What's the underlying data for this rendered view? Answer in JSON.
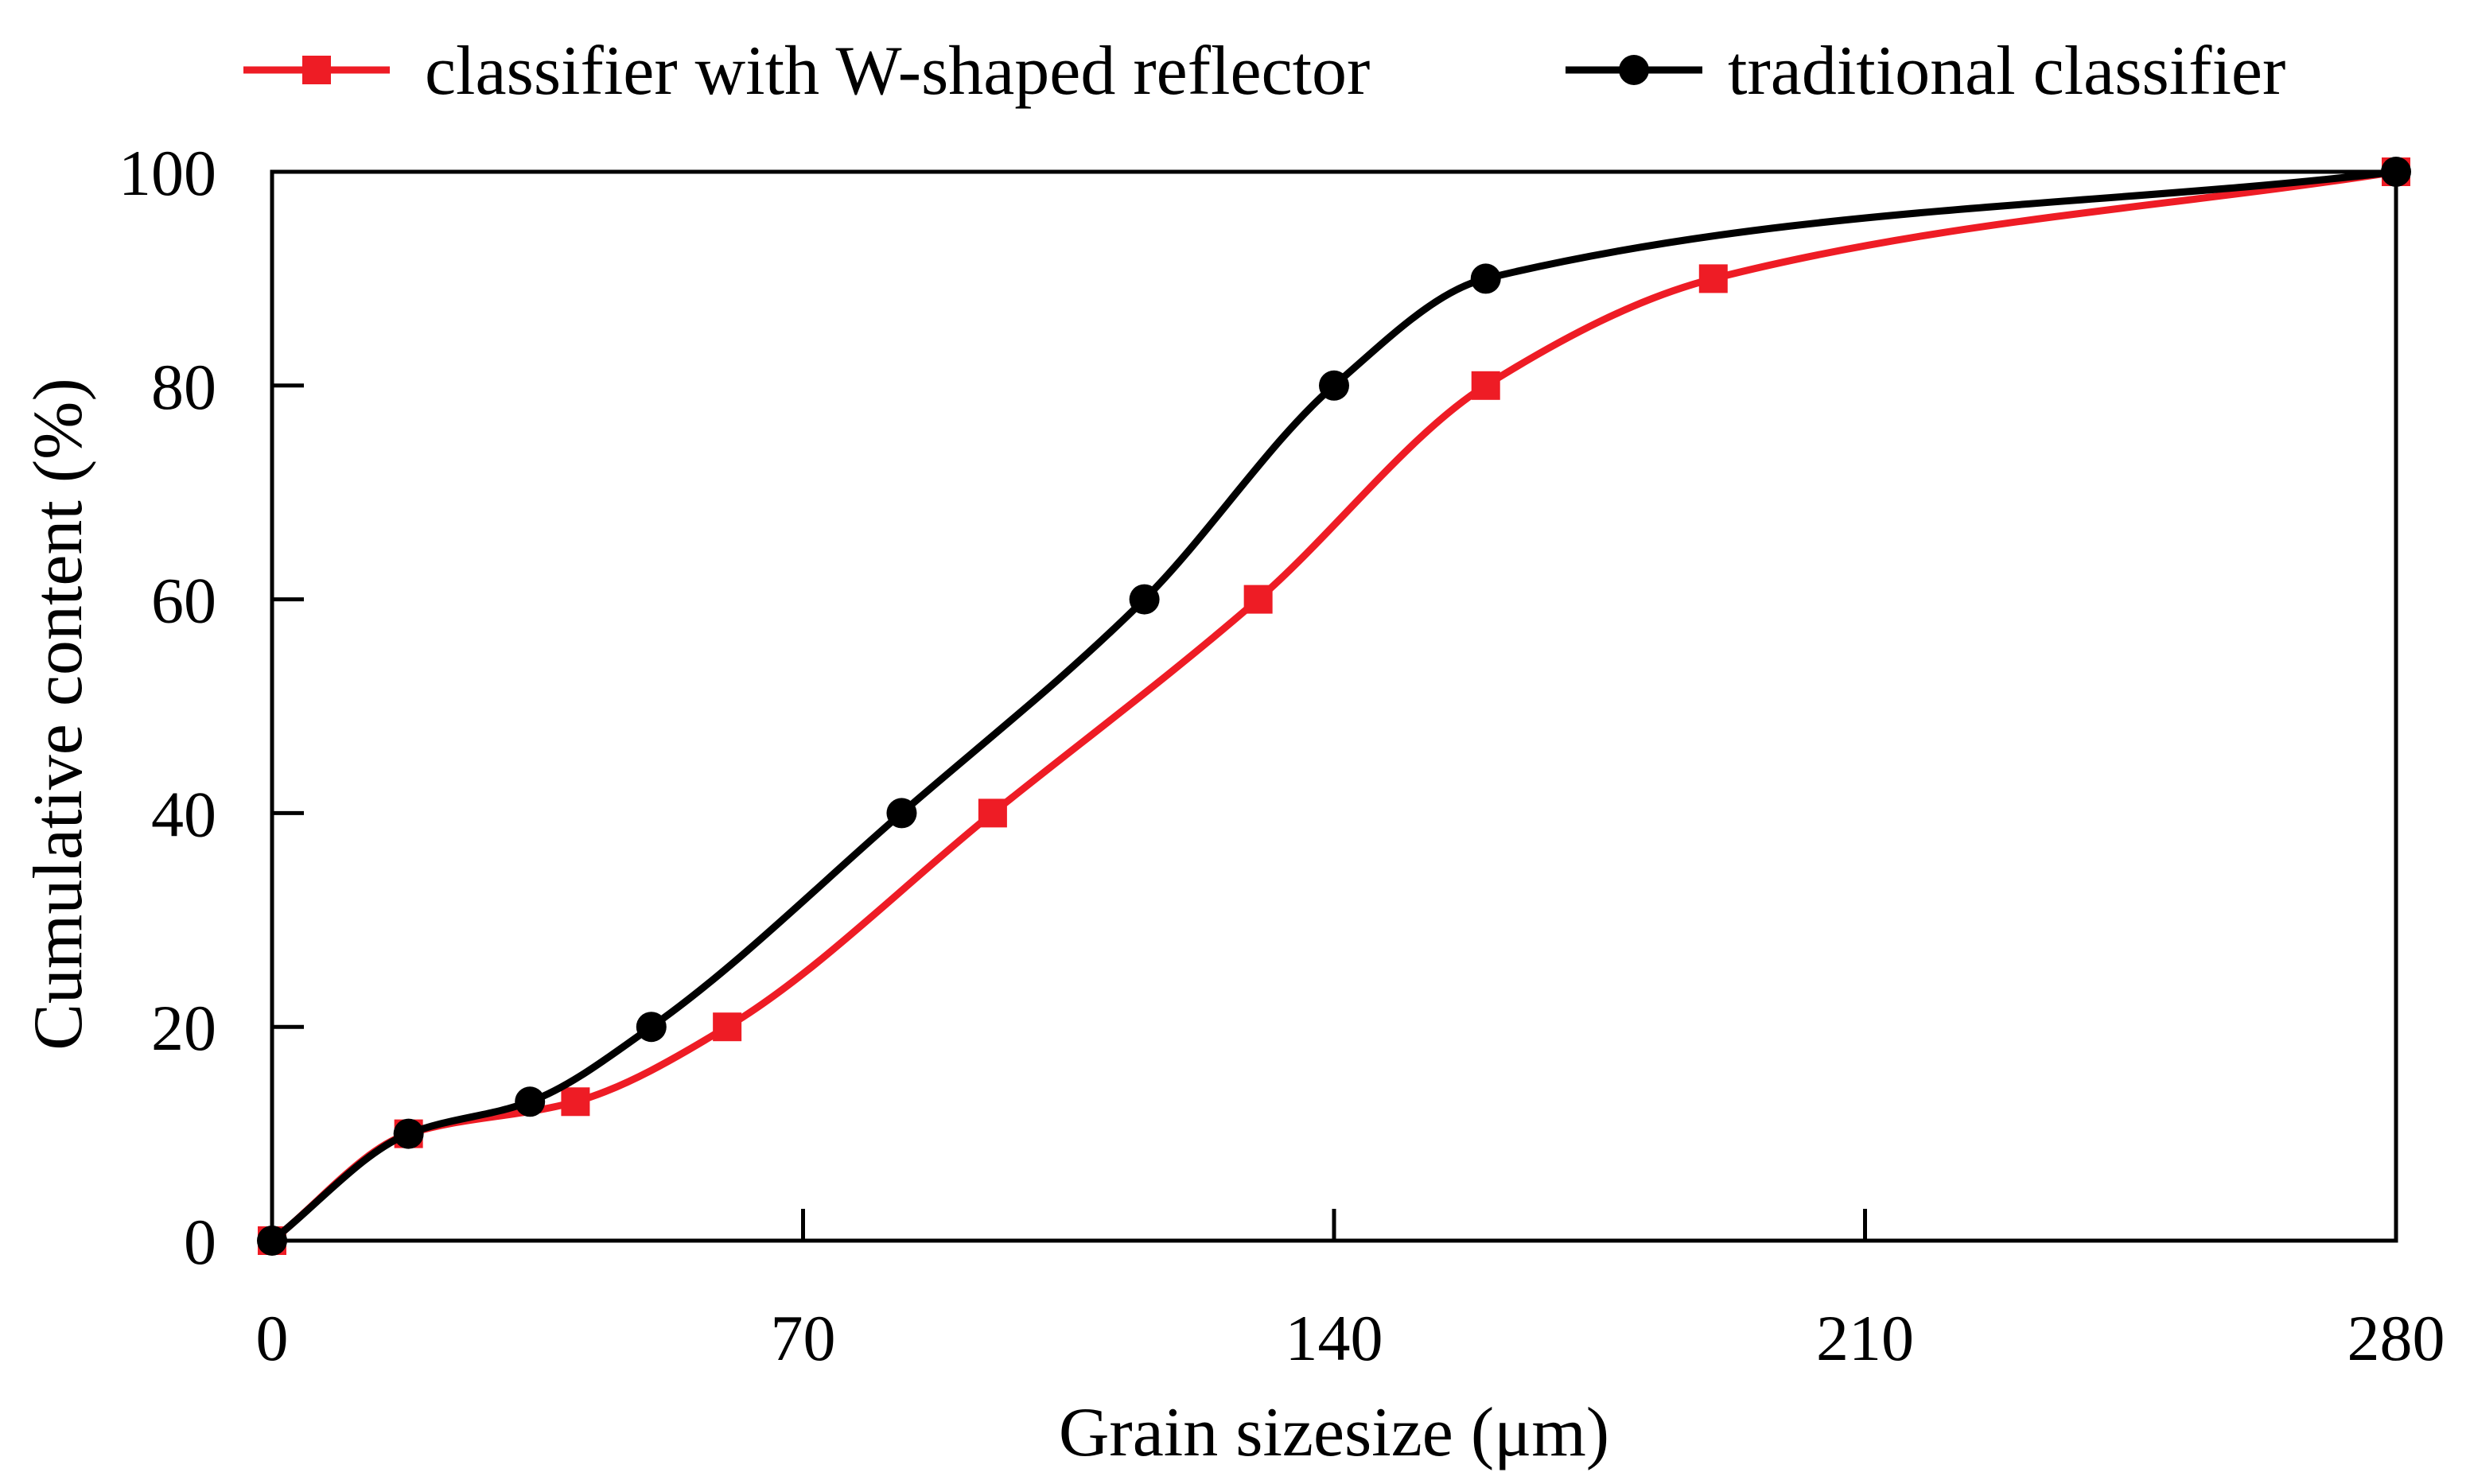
{
  "chart_data": {
    "type": "line",
    "title": "",
    "xlabel": "Grain sizesize (μm)",
    "ylabel": "Cumulative content (%)",
    "xlim": [
      0,
      280
    ],
    "ylim": [
      0,
      100
    ],
    "xticks": [
      0,
      70,
      140,
      210,
      280
    ],
    "yticks": [
      0,
      20,
      40,
      60,
      80,
      100
    ],
    "grid": false,
    "legend_position": "top",
    "series": [
      {
        "name": "classifier with W-shaped reflector",
        "color": "#ee1c25",
        "marker": "square",
        "x": [
          0,
          18,
          40,
          60,
          95,
          130,
          160,
          190,
          280
        ],
        "y": [
          0,
          10,
          13,
          20,
          40,
          60,
          80,
          90,
          100
        ]
      },
      {
        "name": "traditional classifier",
        "color": "#000000",
        "marker": "circle",
        "x": [
          0,
          18,
          34,
          50,
          83,
          115,
          140,
          160,
          280
        ],
        "y": [
          0,
          10,
          13,
          20,
          40,
          60,
          80,
          90,
          100
        ]
      }
    ]
  }
}
